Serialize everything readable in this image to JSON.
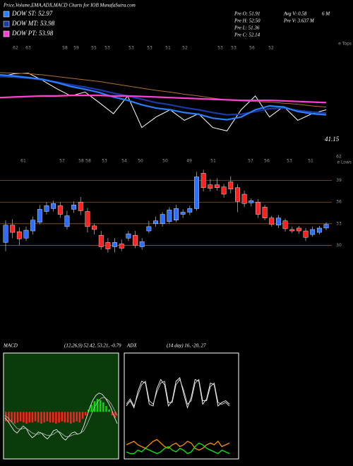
{
  "header": {
    "title": "Price,Volume,EMA,ADX,MACD Charts for IOB MunafaSutra.com"
  },
  "info": [
    [
      "Pre O: 51.91",
      "Avg V: 0.58",
      "6 M"
    ],
    [
      "Pre H: 52.50",
      "Pre V: 3.637 M"
    ],
    [
      "Pre L: 51.36"
    ],
    [
      "Pre C: 52.14"
    ]
  ],
  "chart_data": [
    {
      "type": "line",
      "ylim": [
        28,
        42
      ],
      "series": [
        {
          "color": "#ffffff",
          "values": [
            40.2,
            40.8,
            40.9,
            39.6,
            38.1,
            36.8,
            37.5,
            35.6,
            33.6,
            36.8,
            31.1,
            33.0,
            34.3,
            32.4,
            33.6,
            31.1,
            30.5,
            34.3,
            36.8,
            33.0,
            34.9,
            32.4,
            33.6,
            34.3
          ]
        },
        {
          "color": "#b07030",
          "values": [
            41.0,
            40.9,
            40.8,
            40.6,
            40.3,
            40.0,
            39.7,
            39.4,
            39.0,
            38.6,
            38.2,
            37.8,
            37.5,
            37.1,
            36.8,
            36.4,
            36.1,
            35.9,
            35.8,
            35.7,
            35.5,
            35.3,
            35.0,
            34.8
          ]
        },
        {
          "name": "DOW MT: 53.98",
          "color": "#1a3aa8",
          "values": [
            40.3,
            40.2,
            40.0,
            39.7,
            39.3,
            38.8,
            38.4,
            37.9,
            37.3,
            36.8,
            36.2,
            35.6,
            35.2,
            34.7,
            34.3,
            33.8,
            33.4,
            33.5,
            34.0,
            34.5,
            34.6,
            34.2,
            33.9,
            33.7
          ]
        },
        {
          "name": "DOW ST: 52.97",
          "color": "#2a7fff",
          "values": [
            40.6,
            40.4,
            40.1,
            39.8,
            39.2,
            38.5,
            38.0,
            37.4,
            36.6,
            36.0,
            35.2,
            34.6,
            34.3,
            33.8,
            33.5,
            32.8,
            32.5,
            33.0,
            34.3,
            35.0,
            34.8,
            34.0,
            33.6,
            33.4
          ]
        },
        {
          "name": "DOW PT: 53.98",
          "color": "#ff40d0",
          "values": [
            36.5,
            36.6,
            36.7,
            36.8,
            36.8,
            36.9,
            36.9,
            36.9,
            36.8,
            36.8,
            36.7,
            36.6,
            36.5,
            36.4,
            36.3,
            36.2,
            36.1,
            36.0,
            36.0,
            36.0,
            35.9,
            35.8,
            35.7,
            35.6
          ]
        }
      ],
      "top_labels": [
        "62",
        "63",
        "58",
        "59",
        "55",
        "53",
        "53",
        "53",
        "51",
        "52",
        "53",
        "53",
        "56",
        "52"
      ],
      "tops_label": "e Tops",
      "low_labels": [
        "61",
        "57",
        "58",
        "58",
        "53",
        "54",
        "50",
        "50",
        "49",
        "51",
        "57",
        "56",
        "53",
        "51"
      ],
      "low_end_label": "62",
      "lows_label": "e Lows",
      "annotation": "41.15"
    },
    {
      "type": "candlestick",
      "ylim": [
        27.3,
        42
      ],
      "yticks": [
        30,
        33,
        36,
        39
      ],
      "grid": true,
      "grid_color": "#8b5a2b",
      "up_color": "#2a6fff",
      "down_color": "#ff2020",
      "open": [
        30.4,
        32.8,
        31.9,
        31.0,
        32.0,
        33.2,
        34.7,
        35.1,
        35.5,
        32.6,
        35.0,
        36.0,
        34.7,
        32.7,
        31.4,
        30.4,
        29.8,
        30.2,
        31.0,
        31.4,
        29.8,
        32.0,
        33.0,
        33.0,
        33.3,
        33.5,
        34.3,
        34.6,
        35.1,
        40.0,
        38.4,
        38.4,
        38.1,
        38.8,
        38.0,
        37.1,
        35.9,
        36.0,
        35.3,
        33.8,
        32.8,
        33.4,
        32.2,
        32.4,
        32.0,
        31.5,
        31.8,
        32.4
      ],
      "high": [
        33.5,
        33.6,
        32.5,
        32.6,
        34.0,
        35.6,
        36.0,
        36.2,
        36.0,
        34.8,
        36.1,
        36.7,
        35.2,
        33.0,
        32.0,
        31.0,
        31.0,
        30.8,
        32.0,
        32.0,
        31.0,
        33.4,
        34.0,
        34.6,
        35.3,
        35.6,
        35.0,
        35.5,
        40.2,
        40.5,
        39.2,
        39.3,
        38.5,
        39.6,
        38.5,
        37.6,
        36.5,
        36.4,
        35.6,
        34.1,
        34.2,
        33.7,
        32.6,
        32.7,
        32.4,
        32.6,
        32.7,
        33.2
      ],
      "low": [
        29.2,
        31.0,
        30.0,
        30.6,
        31.5,
        32.9,
        34.3,
        34.7,
        33.8,
        32.2,
        34.5,
        34.2,
        31.8,
        31.5,
        29.4,
        29.0,
        29.0,
        29.2,
        30.6,
        29.6,
        29.4,
        31.7,
        32.6,
        32.6,
        33.0,
        33.2,
        33.8,
        34.2,
        34.8,
        37.5,
        37.5,
        37.6,
        36.6,
        37.2,
        34.6,
        35.3,
        35.4,
        33.8,
        33.5,
        32.6,
        32.4,
        31.9,
        31.7,
        31.6,
        30.6,
        31.2,
        31.5,
        32.1
      ],
      "close": [
        32.8,
        31.8,
        30.9,
        32.1,
        33.5,
        35.0,
        35.5,
        35.8,
        34.3,
        34.1,
        35.6,
        34.8,
        32.6,
        32.2,
        29.8,
        29.5,
        30.4,
        29.6,
        31.6,
        30.0,
        30.5,
        32.6,
        33.4,
        34.3,
        34.9,
        35.1,
        34.6,
        35.1,
        39.5,
        38.0,
        37.9,
        38.0,
        37.1,
        37.8,
        36.1,
        35.8,
        36.2,
        34.3,
        33.8,
        32.9,
        33.8,
        32.3,
        32.0,
        32.0,
        31.1,
        32.2,
        32.4,
        32.9
      ]
    },
    {
      "type": "macd",
      "title": "MACD",
      "subtitle": "(12,26,9) 52.42, 53.21, -0.79",
      "ylim": [
        -4,
        5
      ],
      "background": "#0b3a0b",
      "histogram": {
        "pos_color": "#00dd00",
        "neg_color": "#ff2020",
        "values": [
          -0.8,
          -0.9,
          -0.9,
          -1.0,
          -0.9,
          -0.8,
          -0.9,
          -1.0,
          -0.9,
          -0.9,
          -0.8,
          -0.9,
          -1.0,
          -0.9,
          -0.8,
          -0.9,
          -0.9,
          -1.0,
          -0.9,
          -0.8,
          -0.9,
          -0.9,
          -1.0,
          -0.9,
          -0.8,
          -0.9,
          -0.6,
          -0.3,
          0.2,
          0.6,
          0.9,
          1.1,
          1.0,
          0.8,
          0.5,
          0.2,
          -0.3,
          -0.5
        ]
      },
      "series": [
        {
          "color": "#ffffff",
          "values": [
            -0.5,
            -0.8,
            -1.2,
            -1.6,
            -1.8,
            -1.5,
            -1.2,
            -1.4,
            -1.9,
            -2.2,
            -2.0,
            -1.7,
            -1.8,
            -2.1,
            -2.3,
            -2.0,
            -1.6,
            -1.5,
            -1.8,
            -2.2,
            -2.4,
            -2.1,
            -1.8,
            -1.7,
            -1.9,
            -1.8,
            -1.2,
            -0.4,
            0.4,
            1.0,
            1.4,
            1.6,
            1.5,
            1.2,
            0.8,
            0.3,
            -0.4,
            -1.0
          ]
        },
        {
          "color": "#bbbbbb",
          "values": [
            -0.3,
            -0.5,
            -0.8,
            -1.1,
            -1.4,
            -1.5,
            -1.4,
            -1.4,
            -1.6,
            -1.8,
            -1.9,
            -1.9,
            -1.8,
            -1.9,
            -2.0,
            -2.0,
            -1.9,
            -1.7,
            -1.7,
            -1.9,
            -2.1,
            -2.1,
            -2.0,
            -1.9,
            -1.9,
            -1.8,
            -1.6,
            -1.1,
            -0.5,
            0.1,
            0.6,
            1.0,
            1.2,
            1.2,
            1.0,
            0.7,
            0.2,
            -0.3
          ]
        }
      ]
    },
    {
      "type": "adx",
      "title": "ADX",
      "subtitle": "(14 day) 16, -20, 27",
      "ylim": [
        0,
        60
      ],
      "background": "#000000",
      "series": [
        {
          "color": "#ffffff",
          "values": [
            30,
            33,
            29,
            38,
            44,
            43,
            31,
            30,
            40,
            45,
            42,
            30,
            33,
            44,
            46,
            37,
            29,
            35,
            45,
            44,
            31,
            34,
            43,
            42,
            30,
            32,
            33,
            31
          ]
        },
        {
          "color": "#dddddd",
          "values": [
            31,
            34,
            30,
            36,
            42,
            44,
            33,
            31,
            38,
            43,
            44,
            32,
            32,
            42,
            45,
            39,
            31,
            33,
            43,
            45,
            33,
            33,
            41,
            43,
            32,
            31,
            32,
            30
          ]
        },
        {
          "color": "#ff8c00",
          "values": [
            8,
            9,
            10,
            8,
            7,
            6,
            8,
            10,
            11,
            9,
            7,
            6,
            8,
            9,
            7,
            8,
            10,
            9,
            6,
            5,
            6,
            8,
            9,
            8,
            10,
            7,
            8,
            9
          ]
        },
        {
          "color": "#00ee00",
          "values": [
            4,
            3,
            3,
            5,
            4,
            6,
            5,
            4,
            3,
            4,
            6,
            7,
            5,
            4,
            6,
            5,
            3,
            4,
            7,
            9,
            8,
            6,
            5,
            4,
            3,
            5,
            4,
            3
          ]
        }
      ]
    }
  ]
}
